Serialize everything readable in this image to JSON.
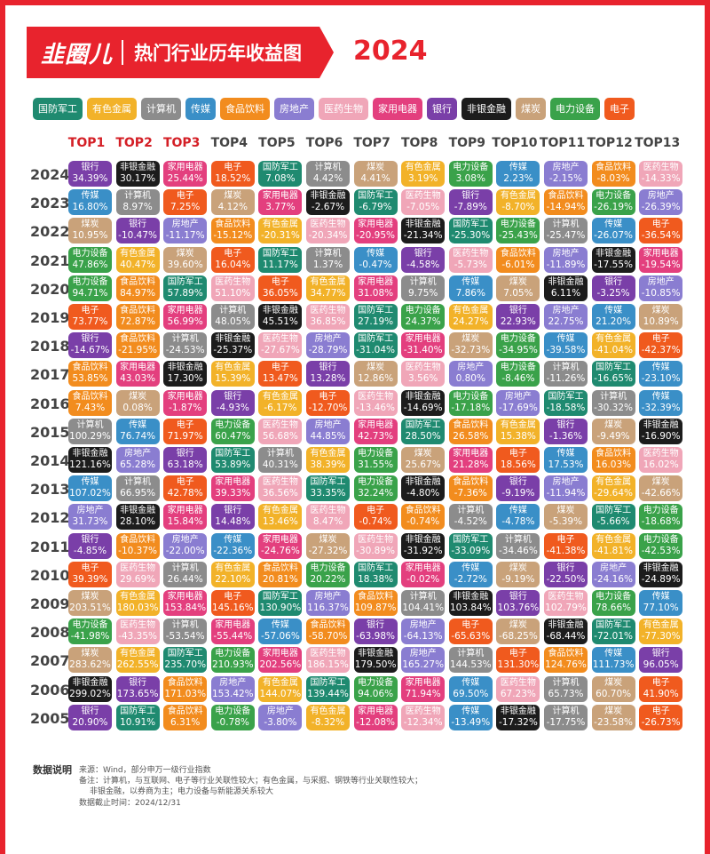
{
  "header": {
    "logo": "韭圈儿",
    "title": "热门行业历年收益图",
    "year": "2024"
  },
  "industries": [
    {
      "name": "国防军工",
      "color": "#1f8a70"
    },
    {
      "name": "有色金属",
      "color": "#f2b229"
    },
    {
      "name": "计算机",
      "color": "#8c8c8c"
    },
    {
      "name": "传媒",
      "color": "#3a8fc7"
    },
    {
      "name": "食品饮料",
      "color": "#f28c1e"
    },
    {
      "name": "房地产",
      "color": "#8a7dd1"
    },
    {
      "name": "医药生物",
      "color": "#f0a6b8"
    },
    {
      "name": "家用电器",
      "color": "#e33f7e"
    },
    {
      "name": "银行",
      "color": "#7a3fa8"
    },
    {
      "name": "非银金融",
      "color": "#1c1c1c"
    },
    {
      "name": "煤炭",
      "color": "#c9a27a"
    },
    {
      "name": "电力设备",
      "color": "#3aa24a"
    },
    {
      "name": "电子",
      "color": "#f05a1e"
    }
  ],
  "chart_data": {
    "type": "table",
    "title": "热门行业历年收益图",
    "columns": [
      "TOP1",
      "TOP2",
      "TOP3",
      "TOP4",
      "TOP5",
      "TOP6",
      "TOP7",
      "TOP8",
      "TOP9",
      "TOP10",
      "TOP11",
      "TOP12",
      "TOP13"
    ],
    "rows": [
      {
        "year": "2024",
        "cells": [
          [
            "银行",
            "34.39%"
          ],
          [
            "非银金融",
            "30.17%"
          ],
          [
            "家用电器",
            "25.44%"
          ],
          [
            "电子",
            "18.52%"
          ],
          [
            "国防军工",
            "7.08%"
          ],
          [
            "计算机",
            "4.42%"
          ],
          [
            "煤炭",
            "4.41%"
          ],
          [
            "有色金属",
            "3.19%"
          ],
          [
            "电力设备",
            "3.08%"
          ],
          [
            "传媒",
            "2.23%"
          ],
          [
            "房地产",
            "-2.15%"
          ],
          [
            "食品饮料",
            "-8.03%"
          ],
          [
            "医药生物",
            "-14.33%"
          ]
        ]
      },
      {
        "year": "2023",
        "cells": [
          [
            "传媒",
            "16.80%"
          ],
          [
            "计算机",
            "8.97%"
          ],
          [
            "电子",
            "7.25%"
          ],
          [
            "煤炭",
            "4.12%"
          ],
          [
            "家用电器",
            "3.77%"
          ],
          [
            "非银金融",
            "-2.67%"
          ],
          [
            "国防军工",
            "-6.79%"
          ],
          [
            "医药生物",
            "-7.05%"
          ],
          [
            "银行",
            "-7.89%"
          ],
          [
            "有色金属",
            "-8.70%"
          ],
          [
            "食品饮料",
            "-14.94%"
          ],
          [
            "电力设备",
            "-26.19%"
          ],
          [
            "房地产",
            "-26.39%"
          ]
        ]
      },
      {
        "year": "2022",
        "cells": [
          [
            "煤炭",
            "10.95%"
          ],
          [
            "银行",
            "-10.47%"
          ],
          [
            "房地产",
            "-11.17%"
          ],
          [
            "食品饮料",
            "-15.12%"
          ],
          [
            "有色金属",
            "-20.31%"
          ],
          [
            "医药生物",
            "-20.34%"
          ],
          [
            "家用电器",
            "-20.95%"
          ],
          [
            "非银金融",
            "-21.34%"
          ],
          [
            "国防军工",
            "-25.30%"
          ],
          [
            "电力设备",
            "-25.43%"
          ],
          [
            "计算机",
            "-25.47%"
          ],
          [
            "传媒",
            "-26.07%"
          ],
          [
            "电子",
            "-36.54%"
          ]
        ]
      },
      {
        "year": "2021",
        "cells": [
          [
            "电力设备",
            "47.86%"
          ],
          [
            "有色金属",
            "40.47%"
          ],
          [
            "煤炭",
            "39.60%"
          ],
          [
            "电子",
            "16.04%"
          ],
          [
            "国防军工",
            "11.17%"
          ],
          [
            "计算机",
            "1.37%"
          ],
          [
            "传媒",
            "-0.47%"
          ],
          [
            "银行",
            "-4.58%"
          ],
          [
            "医药生物",
            "-5.73%"
          ],
          [
            "食品饮料",
            "-6.01%"
          ],
          [
            "房地产",
            "-11.89%"
          ],
          [
            "非银金融",
            "-17.55%"
          ],
          [
            "家用电器",
            "-19.54%"
          ]
        ]
      },
      {
        "year": "2020",
        "cells": [
          [
            "电力设备",
            "94.71%"
          ],
          [
            "食品饮料",
            "84.97%"
          ],
          [
            "国防军工",
            "57.89%"
          ],
          [
            "医药生物",
            "51.10%"
          ],
          [
            "电子",
            "36.05%"
          ],
          [
            "有色金属",
            "34.77%"
          ],
          [
            "家用电器",
            "31.08%"
          ],
          [
            "计算机",
            "9.75%"
          ],
          [
            "传媒",
            "7.86%"
          ],
          [
            "煤炭",
            "7.05%"
          ],
          [
            "非银金融",
            "6.11%"
          ],
          [
            "银行",
            "-3.25%"
          ],
          [
            "房地产",
            "-10.85%"
          ]
        ]
      },
      {
        "year": "2019",
        "cells": [
          [
            "电子",
            "73.77%"
          ],
          [
            "食品饮料",
            "72.87%"
          ],
          [
            "家用电器",
            "56.99%"
          ],
          [
            "计算机",
            "48.05%"
          ],
          [
            "非银金融",
            "45.51%"
          ],
          [
            "医药生物",
            "36.85%"
          ],
          [
            "国防军工",
            "27.19%"
          ],
          [
            "电力设备",
            "24.37%"
          ],
          [
            "有色金属",
            "24.27%"
          ],
          [
            "银行",
            "22.93%"
          ],
          [
            "房地产",
            "22.75%"
          ],
          [
            "传媒",
            "21.20%"
          ],
          [
            "煤炭",
            "10.89%"
          ]
        ]
      },
      {
        "year": "2018",
        "cells": [
          [
            "银行",
            "-14.67%"
          ],
          [
            "食品饮料",
            "-21.95%"
          ],
          [
            "计算机",
            "-24.53%"
          ],
          [
            "非银金融",
            "-25.37%"
          ],
          [
            "医药生物",
            "-27.67%"
          ],
          [
            "房地产",
            "-28.79%"
          ],
          [
            "国防军工",
            "-31.04%"
          ],
          [
            "家用电器",
            "-31.40%"
          ],
          [
            "煤炭",
            "-32.73%"
          ],
          [
            "电力设备",
            "-34.95%"
          ],
          [
            "传媒",
            "-39.58%"
          ],
          [
            "有色金属",
            "-41.04%"
          ],
          [
            "电子",
            "-42.37%"
          ]
        ]
      },
      {
        "year": "2017",
        "cells": [
          [
            "食品饮料",
            "53.85%"
          ],
          [
            "家用电器",
            "43.03%"
          ],
          [
            "非银金融",
            "17.30%"
          ],
          [
            "有色金属",
            "15.39%"
          ],
          [
            "电子",
            "13.47%"
          ],
          [
            "银行",
            "13.28%"
          ],
          [
            "煤炭",
            "12.86%"
          ],
          [
            "医药生物",
            "3.56%"
          ],
          [
            "房地产",
            "0.80%"
          ],
          [
            "电力设备",
            "-8.46%"
          ],
          [
            "计算机",
            "-11.26%"
          ],
          [
            "国防军工",
            "-16.65%"
          ],
          [
            "传媒",
            "-23.10%"
          ]
        ]
      },
      {
        "year": "2016",
        "cells": [
          [
            "食品饮料",
            "7.43%"
          ],
          [
            "煤炭",
            "0.08%"
          ],
          [
            "家用电器",
            "-1.87%"
          ],
          [
            "银行",
            "-4.93%"
          ],
          [
            "有色金属",
            "-6.17%"
          ],
          [
            "电子",
            "-12.70%"
          ],
          [
            "医药生物",
            "-13.46%"
          ],
          [
            "非银金融",
            "-14.69%"
          ],
          [
            "电力设备",
            "-17.18%"
          ],
          [
            "房地产",
            "-17.69%"
          ],
          [
            "国防军工",
            "-18.58%"
          ],
          [
            "计算机",
            "-30.32%"
          ],
          [
            "传媒",
            "-32.39%"
          ]
        ]
      },
      {
        "year": "2015",
        "cells": [
          [
            "计算机",
            "100.29%"
          ],
          [
            "传媒",
            "76.74%"
          ],
          [
            "电子",
            "71.97%"
          ],
          [
            "电力设备",
            "60.47%"
          ],
          [
            "医药生物",
            "56.68%"
          ],
          [
            "房地产",
            "44.85%"
          ],
          [
            "家用电器",
            "42.73%"
          ],
          [
            "国防军工",
            "28.50%"
          ],
          [
            "食品饮料",
            "26.58%"
          ],
          [
            "有色金属",
            "15.38%"
          ],
          [
            "银行",
            "-1.36%"
          ],
          [
            "煤炭",
            "-9.49%"
          ],
          [
            "非银金融",
            "-16.90%"
          ]
        ]
      },
      {
        "year": "2014",
        "cells": [
          [
            "非银金融",
            "121.16%"
          ],
          [
            "房地产",
            "65.28%"
          ],
          [
            "银行",
            "63.18%"
          ],
          [
            "国防军工",
            "53.89%"
          ],
          [
            "计算机",
            "40.31%"
          ],
          [
            "有色金属",
            "38.39%"
          ],
          [
            "电力设备",
            "31.55%"
          ],
          [
            "煤炭",
            "25.67%"
          ],
          [
            "家用电器",
            "21.28%"
          ],
          [
            "电子",
            "18.56%"
          ],
          [
            "传媒",
            "17.53%"
          ],
          [
            "食品饮料",
            "16.03%"
          ],
          [
            "医药生物",
            "16.02%"
          ]
        ]
      },
      {
        "year": "2013",
        "cells": [
          [
            "传媒",
            "107.02%"
          ],
          [
            "计算机",
            "66.95%"
          ],
          [
            "电子",
            "42.78%"
          ],
          [
            "家用电器",
            "39.33%"
          ],
          [
            "医药生物",
            "36.56%"
          ],
          [
            "国防军工",
            "33.35%"
          ],
          [
            "电力设备",
            "32.24%"
          ],
          [
            "非银金融",
            "-4.80%"
          ],
          [
            "食品饮料",
            "-7.36%"
          ],
          [
            "银行",
            "-9.19%"
          ],
          [
            "房地产",
            "-11.94%"
          ],
          [
            "有色金属",
            "-29.64%"
          ],
          [
            "煤炭",
            "-42.66%"
          ]
        ]
      },
      {
        "year": "2012",
        "cells": [
          [
            "房地产",
            "31.73%"
          ],
          [
            "非银金融",
            "28.10%"
          ],
          [
            "家用电器",
            "15.84%"
          ],
          [
            "银行",
            "14.48%"
          ],
          [
            "有色金属",
            "13.46%"
          ],
          [
            "医药生物",
            "8.47%"
          ],
          [
            "电子",
            "-0.74%"
          ],
          [
            "食品饮料",
            "-0.74%"
          ],
          [
            "计算机",
            "-4.52%"
          ],
          [
            "传媒",
            "-4.78%"
          ],
          [
            "煤炭",
            "-5.39%"
          ],
          [
            "国防军工",
            "-5.66%"
          ],
          [
            "电力设备",
            "-18.68%"
          ]
        ]
      },
      {
        "year": "2011",
        "cells": [
          [
            "银行",
            "-4.85%"
          ],
          [
            "食品饮料",
            "-10.37%"
          ],
          [
            "房地产",
            "-22.00%"
          ],
          [
            "传媒",
            "-22.36%"
          ],
          [
            "家用电器",
            "-24.76%"
          ],
          [
            "煤炭",
            "-27.32%"
          ],
          [
            "医药生物",
            "-30.89%"
          ],
          [
            "非银金融",
            "-31.92%"
          ],
          [
            "国防军工",
            "-33.09%"
          ],
          [
            "计算机",
            "-34.46%"
          ],
          [
            "电子",
            "-41.38%"
          ],
          [
            "有色金属",
            "-41.81%"
          ],
          [
            "电力设备",
            "-42.53%"
          ]
        ]
      },
      {
        "year": "2010",
        "cells": [
          [
            "电子",
            "39.39%"
          ],
          [
            "医药生物",
            "29.69%"
          ],
          [
            "计算机",
            "26.44%"
          ],
          [
            "有色金属",
            "22.10%"
          ],
          [
            "食品饮料",
            "20.81%"
          ],
          [
            "电力设备",
            "20.22%"
          ],
          [
            "国防军工",
            "18.38%"
          ],
          [
            "家用电器",
            "-0.02%"
          ],
          [
            "传媒",
            "-2.72%"
          ],
          [
            "煤炭",
            "-9.19%"
          ],
          [
            "银行",
            "-22.50%"
          ],
          [
            "房地产",
            "-24.16%"
          ],
          [
            "非银金融",
            "-24.89%"
          ]
        ]
      },
      {
        "year": "2009",
        "cells": [
          [
            "煤炭",
            "203.51%"
          ],
          [
            "有色金属",
            "180.03%"
          ],
          [
            "家用电器",
            "153.84%"
          ],
          [
            "电子",
            "145.16%"
          ],
          [
            "国防军工",
            "130.90%"
          ],
          [
            "房地产",
            "116.37%"
          ],
          [
            "食品饮料",
            "109.87%"
          ],
          [
            "计算机",
            "104.41%"
          ],
          [
            "非银金融",
            "103.84%"
          ],
          [
            "银行",
            "103.76%"
          ],
          [
            "医药生物",
            "102.79%"
          ],
          [
            "电力设备",
            "78.66%"
          ],
          [
            "传媒",
            "77.10%"
          ]
        ]
      },
      {
        "year": "2008",
        "cells": [
          [
            "电力设备",
            "-41.98%"
          ],
          [
            "医药生物",
            "-43.35%"
          ],
          [
            "计算机",
            "-53.54%"
          ],
          [
            "家用电器",
            "-55.44%"
          ],
          [
            "传媒",
            "-57.06%"
          ],
          [
            "食品饮料",
            "-58.70%"
          ],
          [
            "银行",
            "-63.98%"
          ],
          [
            "房地产",
            "-64.13%"
          ],
          [
            "电子",
            "-65.63%"
          ],
          [
            "煤炭",
            "-68.25%"
          ],
          [
            "非银金融",
            "-68.44%"
          ],
          [
            "国防军工",
            "-72.01%"
          ],
          [
            "有色金属",
            "-77.30%"
          ]
        ]
      },
      {
        "year": "2007",
        "cells": [
          [
            "煤炭",
            "283.62%"
          ],
          [
            "有色金属",
            "262.55%"
          ],
          [
            "国防军工",
            "235.70%"
          ],
          [
            "电力设备",
            "210.93%"
          ],
          [
            "家用电器",
            "202.56%"
          ],
          [
            "医药生物",
            "186.15%"
          ],
          [
            "非银金融",
            "179.50%"
          ],
          [
            "房地产",
            "165.27%"
          ],
          [
            "计算机",
            "144.53%"
          ],
          [
            "电子",
            "131.30%"
          ],
          [
            "食品饮料",
            "124.76%"
          ],
          [
            "传媒",
            "111.73%"
          ],
          [
            "银行",
            "96.05%"
          ]
        ]
      },
      {
        "year": "2006",
        "cells": [
          [
            "非银金融",
            "299.02%"
          ],
          [
            "银行",
            "173.65%"
          ],
          [
            "食品饮料",
            "171.03%"
          ],
          [
            "房地产",
            "153.42%"
          ],
          [
            "有色金属",
            "144.07%"
          ],
          [
            "国防军工",
            "139.44%"
          ],
          [
            "电力设备",
            "94.06%"
          ],
          [
            "家用电器",
            "71.94%"
          ],
          [
            "传媒",
            "69.50%"
          ],
          [
            "医药生物",
            "67.23%"
          ],
          [
            "计算机",
            "65.73%"
          ],
          [
            "煤炭",
            "60.70%"
          ],
          [
            "电子",
            "41.90%"
          ]
        ]
      },
      {
        "year": "2005",
        "cells": [
          [
            "银行",
            "20.90%"
          ],
          [
            "国防军工",
            "10.91%"
          ],
          [
            "食品饮料",
            "6.31%"
          ],
          [
            "电力设备",
            "-0.78%"
          ],
          [
            "房地产",
            "-3.80%"
          ],
          [
            "有色金属",
            "-8.32%"
          ],
          [
            "家用电器",
            "-12.08%"
          ],
          [
            "医药生物",
            "-12.34%"
          ],
          [
            "传媒",
            "-13.49%"
          ],
          [
            "非银金融",
            "-17.32%"
          ],
          [
            "计算机",
            "-17.75%"
          ],
          [
            "煤炭",
            "-23.58%"
          ],
          [
            "电子",
            "-26.73%"
          ]
        ]
      }
    ]
  },
  "notes": {
    "heading": "数据说明",
    "lines": [
      "来源：Wind，部分申万一级行业指数",
      "备注：计算机，与互联网、电子等行业关联性较大；有色金属，与采掘、钢铁等行业关联性较大；",
      "非银金融，以券商为主；电力设备与新能源关系较大",
      "数据截止时间：2024/12/31"
    ]
  }
}
